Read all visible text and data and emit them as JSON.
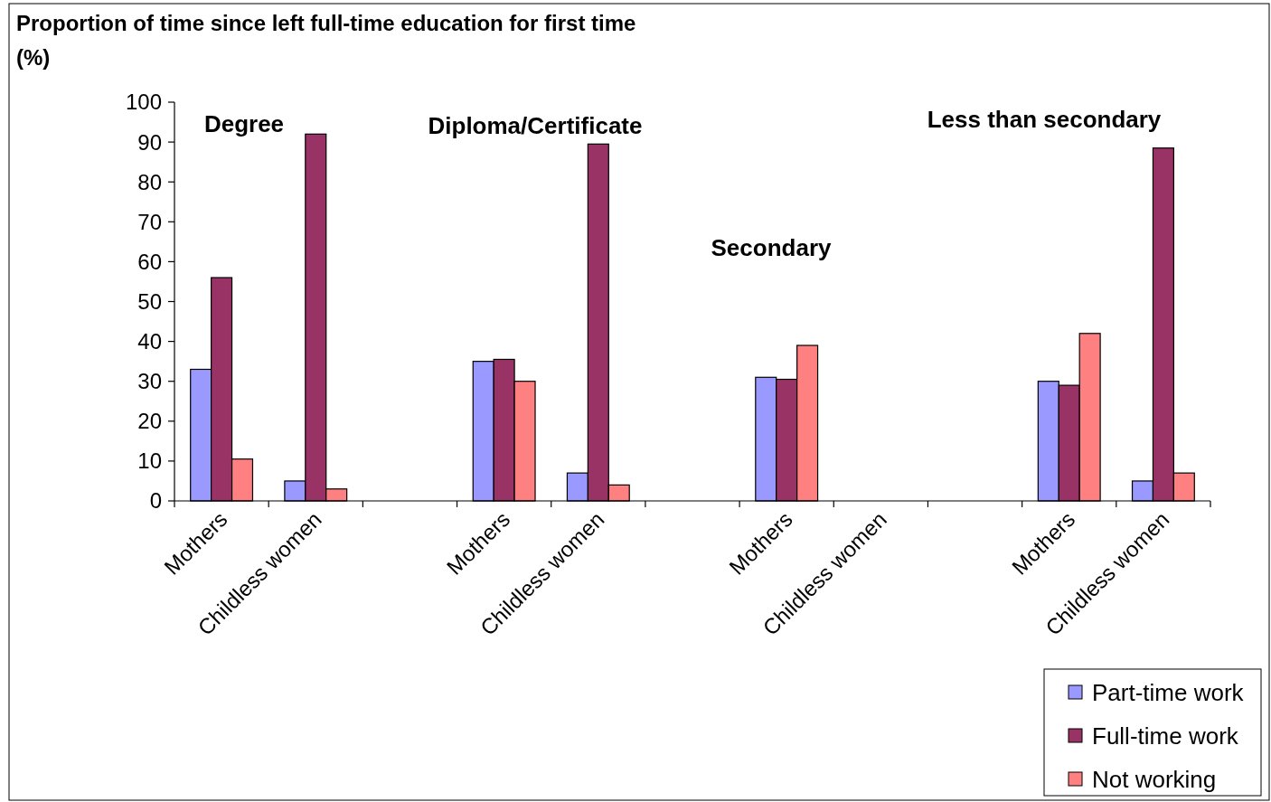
{
  "chart_data": {
    "type": "bar",
    "title": "Proportion of time since left full-time education for first time",
    "subtitle": "(%)",
    "categories": [
      "Mothers",
      "Childless women",
      null,
      "Mothers",
      "Childless women",
      null,
      "Mothers",
      "Childless women",
      null,
      "Mothers",
      "Childless women"
    ],
    "series": [
      {
        "name": "Part-time work",
        "color": "#9999ff",
        "values": [
          33,
          5,
          null,
          35,
          7,
          null,
          31,
          null,
          null,
          30,
          5
        ]
      },
      {
        "name": "Full-time work",
        "color": "#993366",
        "values": [
          56,
          92,
          null,
          35.5,
          89.5,
          null,
          30.5,
          null,
          null,
          29,
          88.5
        ]
      },
      {
        "name": "Not working",
        "color": "#ff8080",
        "values": [
          10.5,
          3,
          null,
          30,
          4,
          null,
          39,
          null,
          null,
          42,
          7
        ]
      }
    ],
    "ylim": [
      0,
      100
    ],
    "yticks": [
      0,
      10,
      20,
      30,
      40,
      50,
      60,
      70,
      80,
      90,
      100
    ],
    "grid": false,
    "legend": "bottom right",
    "annotations": [
      "Degree",
      "Diploma/Certificate",
      "Secondary",
      "Less than secondary"
    ]
  }
}
